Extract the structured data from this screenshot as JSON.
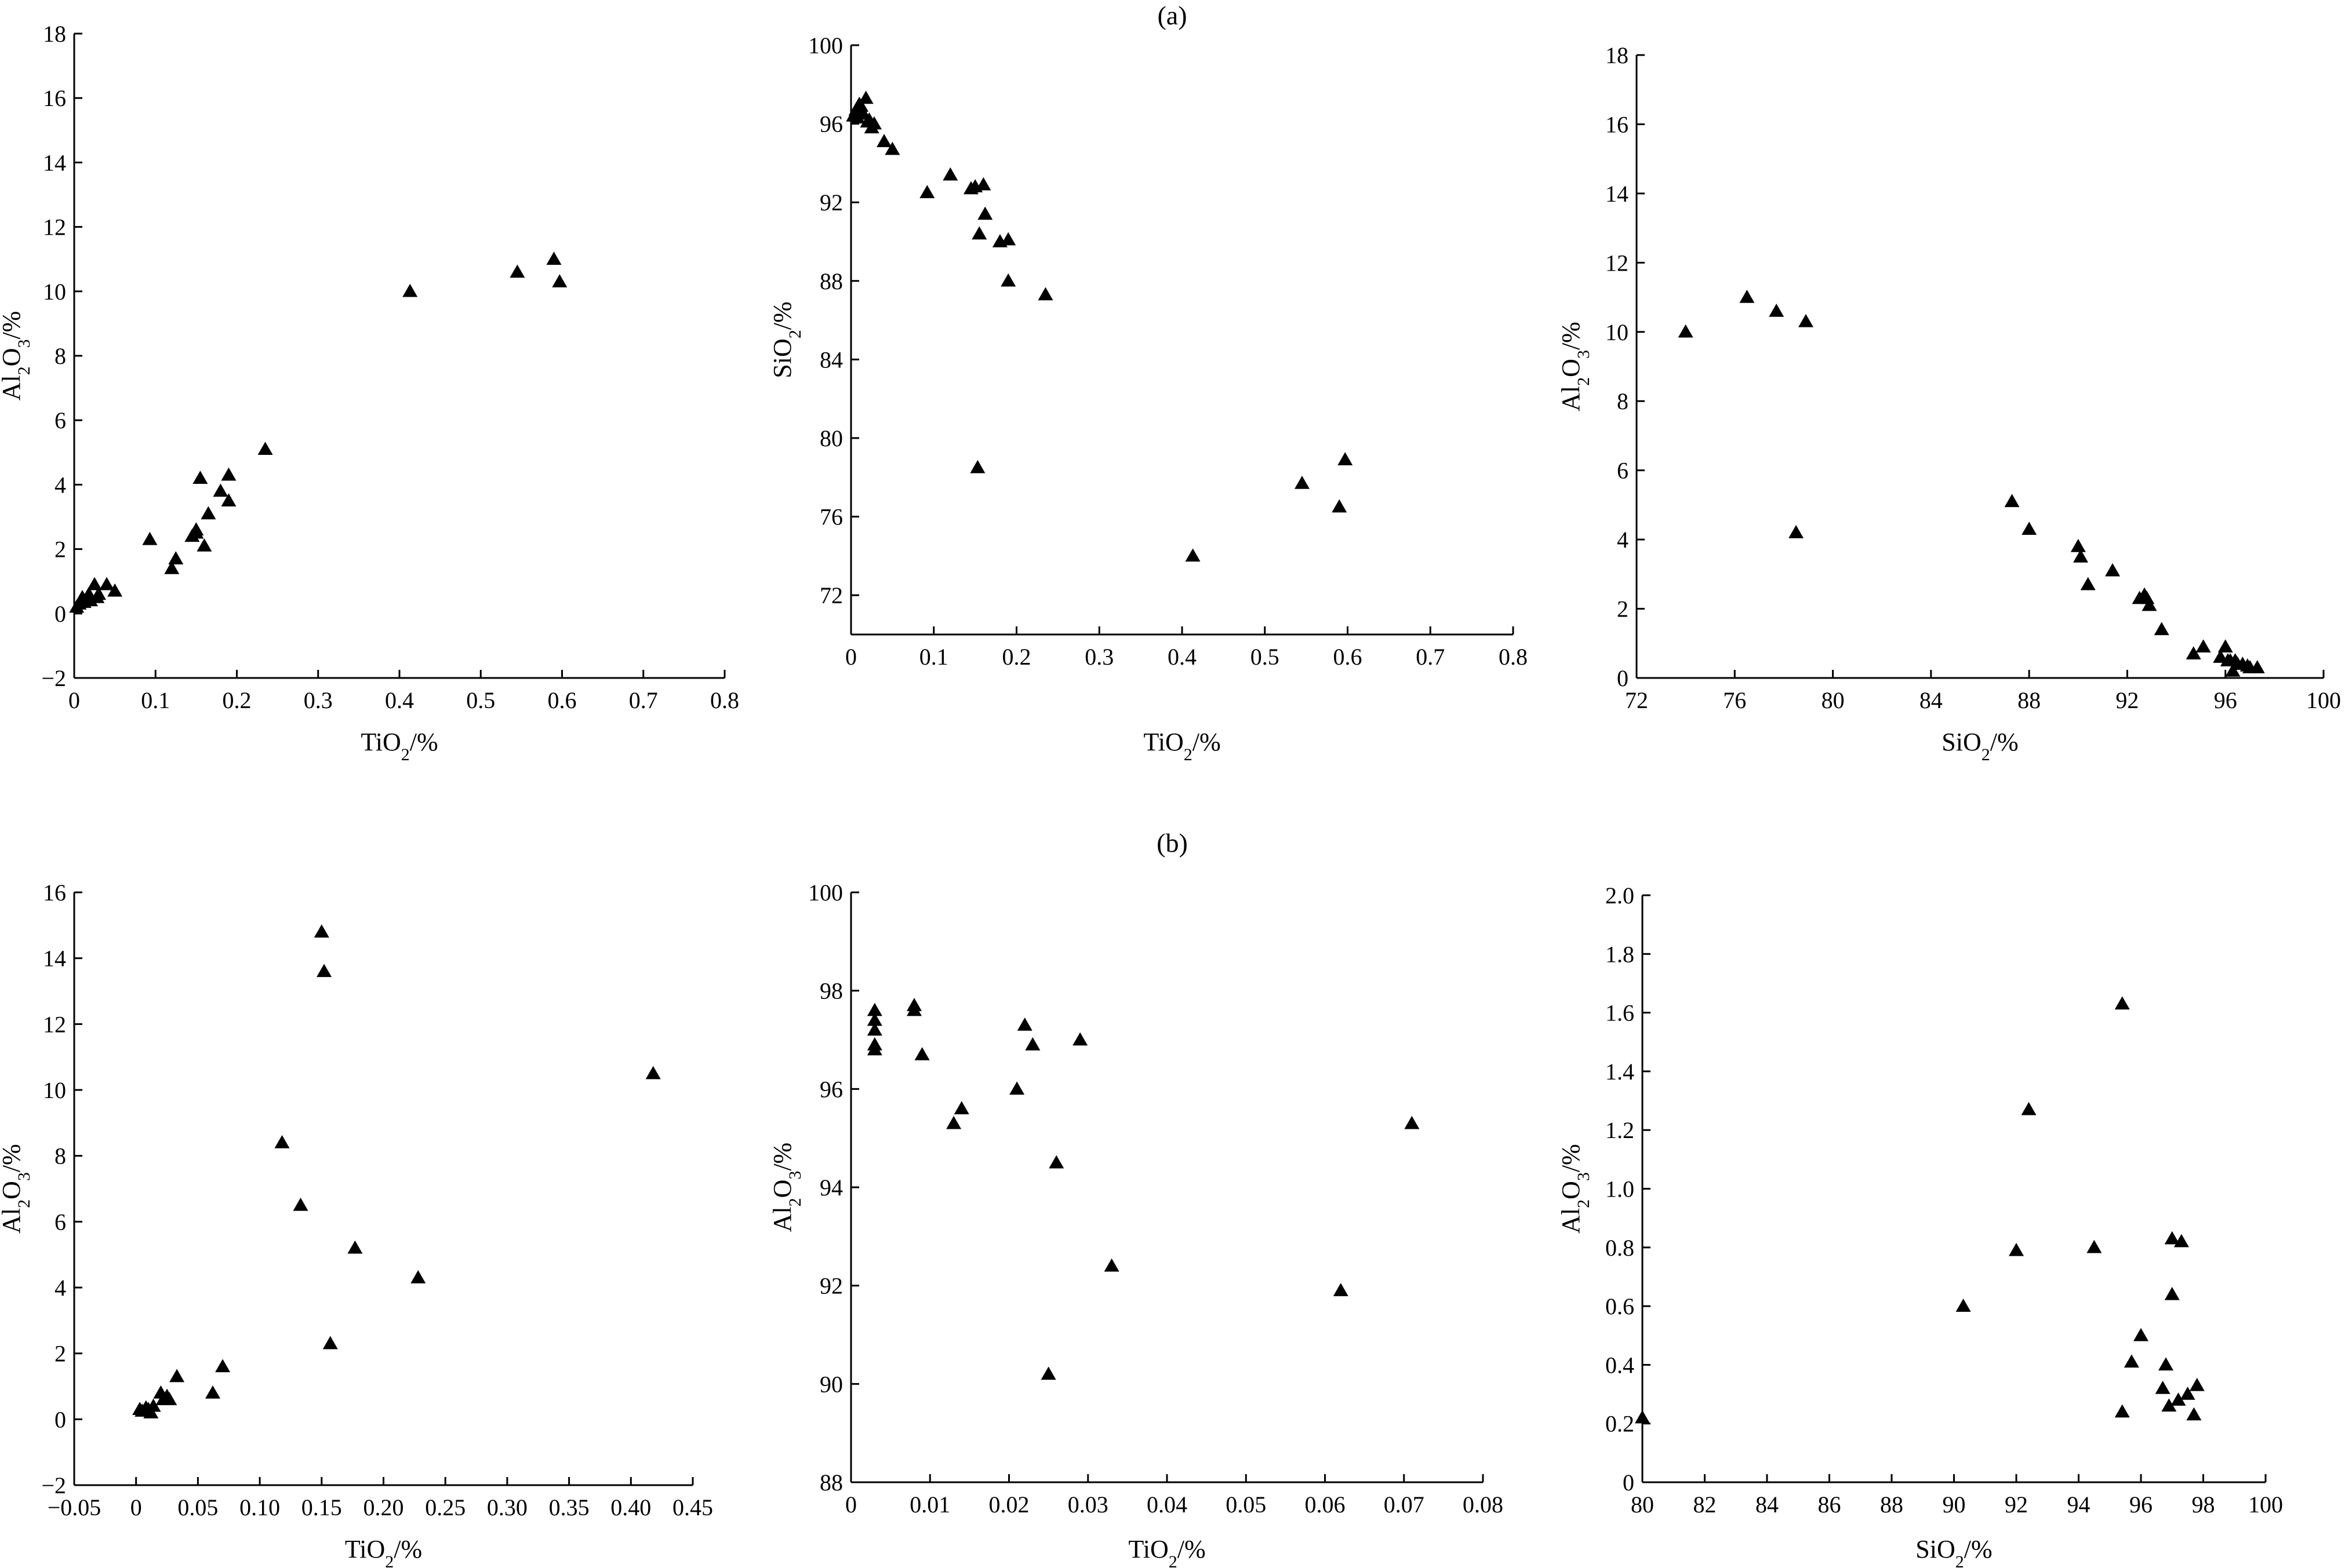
{
  "panels": {
    "a": "(a)",
    "b": "(b)"
  },
  "chart_data": [
    {
      "type": "scatter",
      "panel": "(a)",
      "xlabel": "TiO₂/%",
      "ylabel": "Al₂O₃/%",
      "xlim": [
        0,
        0.8
      ],
      "ylim": [
        -2,
        18
      ],
      "xticks": [
        "0",
        "0.1",
        "0.2",
        "0.3",
        "0.4",
        "0.5",
        "0.6",
        "0.7",
        "0.8"
      ],
      "yticks": [
        "−2",
        "0",
        "2",
        "4",
        "6",
        "8",
        "10",
        "12",
        "14",
        "16",
        "18"
      ],
      "xtick_values": [
        0,
        0.1,
        0.2,
        0.3,
        0.4,
        0.5,
        0.6,
        0.7,
        0.8
      ],
      "ytick_values": [
        -2,
        0,
        2,
        4,
        6,
        8,
        10,
        12,
        14,
        16,
        18
      ],
      "x": [
        0.003,
        0.006,
        0.01,
        0.012,
        0.015,
        0.018,
        0.02,
        0.025,
        0.028,
        0.03,
        0.04,
        0.05,
        0.093,
        0.12,
        0.125,
        0.145,
        0.15,
        0.155,
        0.16,
        0.165,
        0.18,
        0.19,
        0.19,
        0.15,
        0.235,
        0.413,
        0.545,
        0.59,
        0.597
      ],
      "y": [
        0.2,
        0.3,
        0.5,
        0.35,
        0.45,
        0.6,
        0.4,
        0.9,
        0.5,
        0.6,
        0.9,
        0.7,
        2.3,
        1.4,
        1.7,
        2.4,
        2.6,
        4.2,
        2.1,
        3.1,
        3.8,
        4.3,
        3.5,
        2.5,
        5.1,
        10.0,
        10.6,
        11.0,
        10.3
      ]
    },
    {
      "type": "scatter",
      "panel": "(a)",
      "xlabel": "TiO₂/%",
      "ylabel": "SiO₂/%",
      "xlim": [
        0,
        0.8
      ],
      "ylim": [
        70,
        100
      ],
      "xticks": [
        "0",
        "0.1",
        "0.2",
        "0.3",
        "0.4",
        "0.5",
        "0.6",
        "0.7",
        "0.8"
      ],
      "yticks": [
        "72",
        "76",
        "80",
        "84",
        "88",
        "92",
        "96",
        "100"
      ],
      "xtick_values": [
        0,
        0.1,
        0.2,
        0.3,
        0.4,
        0.5,
        0.6,
        0.7,
        0.8
      ],
      "ytick_values": [
        72,
        76,
        80,
        84,
        88,
        92,
        96,
        100
      ],
      "x": [
        0.003,
        0.006,
        0.008,
        0.01,
        0.012,
        0.015,
        0.018,
        0.02,
        0.022,
        0.025,
        0.028,
        0.04,
        0.05,
        0.092,
        0.12,
        0.145,
        0.15,
        0.155,
        0.16,
        0.162,
        0.18,
        0.19,
        0.19,
        0.235,
        0.153,
        0.413,
        0.545,
        0.59,
        0.597
      ],
      "y": [
        96.4,
        96.7,
        96.3,
        97.0,
        96.9,
        96.5,
        97.3,
        96.1,
        96.2,
        95.8,
        96.0,
        95.1,
        94.7,
        92.5,
        93.4,
        92.7,
        92.8,
        90.4,
        92.9,
        91.4,
        90.0,
        90.1,
        88.0,
        87.3,
        78.5,
        74.0,
        77.7,
        76.5,
        78.9
      ]
    },
    {
      "type": "scatter",
      "panel": "(a)",
      "xlabel": "SiO₂/%",
      "ylabel": "Al₂O₃/%",
      "xlim": [
        72,
        100
      ],
      "ylim": [
        0,
        18
      ],
      "xticks": [
        "72",
        "76",
        "80",
        "84",
        "88",
        "92",
        "96",
        "100"
      ],
      "yticks": [
        "0",
        "2",
        "4",
        "6",
        "8",
        "10",
        "12",
        "14",
        "16",
        "18"
      ],
      "xtick_values": [
        72,
        76,
        80,
        84,
        88,
        92,
        96,
        100
      ],
      "ytick_values": [
        0,
        2,
        4,
        6,
        8,
        10,
        12,
        14,
        16,
        18
      ],
      "x": [
        74.0,
        76.5,
        77.7,
        78.9,
        78.5,
        87.3,
        88.0,
        90.0,
        90.1,
        90.4,
        91.4,
        92.5,
        92.7,
        92.8,
        92.9,
        93.4,
        94.7,
        95.1,
        95.8,
        96.0,
        96.1,
        96.2,
        96.3,
        96.4,
        96.5,
        96.7,
        96.9,
        97.0,
        97.3
      ],
      "y": [
        10.0,
        11.0,
        10.6,
        10.3,
        4.2,
        5.1,
        4.3,
        3.8,
        3.5,
        2.7,
        3.1,
        2.3,
        2.4,
        2.3,
        2.1,
        1.4,
        0.7,
        0.9,
        0.6,
        0.9,
        0.5,
        0.5,
        0.2,
        0.5,
        0.4,
        0.4,
        0.35,
        0.3,
        0.3
      ]
    },
    {
      "type": "scatter",
      "panel": "(b)",
      "xlabel": "TiO₂/%",
      "ylabel": "Al₂O₃/%",
      "xlim": [
        -0.05,
        0.45
      ],
      "ylim": [
        -2,
        16
      ],
      "xticks": [
        "−0.05",
        "0",
        "0.05",
        "0.10",
        "0.15",
        "0.20",
        "0.25",
        "0.30",
        "0.35",
        "0.40",
        "0.45"
      ],
      "yticks": [
        "−2",
        "0",
        "2",
        "4",
        "6",
        "8",
        "10",
        "12",
        "14",
        "16"
      ],
      "xtick_values": [
        -0.05,
        0,
        0.05,
        0.1,
        0.15,
        0.2,
        0.25,
        0.3,
        0.35,
        0.4,
        0.45
      ],
      "ytick_values": [
        -2,
        0,
        2,
        4,
        6,
        8,
        10,
        12,
        14,
        16
      ],
      "x": [
        0.003,
        0.005,
        0.008,
        0.01,
        0.012,
        0.014,
        0.02,
        0.022,
        0.025,
        0.027,
        0.033,
        0.062,
        0.07,
        0.118,
        0.133,
        0.15,
        0.152,
        0.157,
        0.177,
        0.228,
        0.418
      ],
      "y": [
        0.3,
        0.25,
        0.35,
        0.3,
        0.2,
        0.4,
        0.8,
        0.6,
        0.7,
        0.6,
        1.3,
        0.8,
        1.6,
        8.4,
        6.5,
        14.8,
        13.6,
        2.3,
        5.2,
        4.3,
        10.5
      ]
    },
    {
      "type": "scatter",
      "panel": "(b)",
      "xlabel": "TiO₂/%",
      "ylabel": "Al₂O₃/%",
      "xlim": [
        0,
        0.08
      ],
      "ylim": [
        88,
        100
      ],
      "xticks": [
        "0",
        "0.01",
        "0.02",
        "0.03",
        "0.04",
        "0.05",
        "0.06",
        "0.07",
        "0.08"
      ],
      "yticks": [
        "88",
        "90",
        "92",
        "94",
        "96",
        "98",
        "100"
      ],
      "xtick_values": [
        0,
        0.01,
        0.02,
        0.03,
        0.04,
        0.05,
        0.06,
        0.07,
        0.08
      ],
      "ytick_values": [
        88,
        90,
        92,
        94,
        96,
        98,
        100
      ],
      "x": [
        0.003,
        0.003,
        0.003,
        0.003,
        0.003,
        0.008,
        0.008,
        0.009,
        0.013,
        0.014,
        0.021,
        0.022,
        0.023,
        0.025,
        0.026,
        0.029,
        0.033,
        0.062,
        0.071
      ],
      "y": [
        97.6,
        97.4,
        97.2,
        96.9,
        96.8,
        97.7,
        97.6,
        96.7,
        95.3,
        95.6,
        96.0,
        97.3,
        96.9,
        90.2,
        94.5,
        97.0,
        92.4,
        91.9,
        95.3
      ]
    },
    {
      "type": "scatter",
      "panel": "(b)",
      "xlabel": "SiO₂/%",
      "ylabel": "Al₂O₃/%",
      "xlim": [
        80,
        100
      ],
      "ylim": [
        0,
        2.0
      ],
      "xticks": [
        "80",
        "82",
        "84",
        "86",
        "88",
        "90",
        "92",
        "94",
        "96",
        "98",
        "100"
      ],
      "yticks": [
        "0",
        "0.2",
        "0.4",
        "0.6",
        "0.8",
        "1.0",
        "1.2",
        "1.4",
        "1.6",
        "1.8",
        "2.0"
      ],
      "xtick_values": [
        80,
        82,
        84,
        86,
        88,
        90,
        92,
        94,
        96,
        98,
        100
      ],
      "ytick_values": [
        0,
        0.2,
        0.4,
        0.6,
        0.8,
        1.0,
        1.2,
        1.4,
        1.6,
        1.8,
        2.0
      ],
      "x": [
        80.0,
        90.3,
        92.0,
        92.4,
        94.5,
        95.4,
        95.4,
        95.7,
        96.0,
        96.7,
        96.8,
        96.9,
        97.0,
        97.0,
        97.2,
        97.3,
        97.5,
        97.7,
        97.8
      ],
      "y": [
        0.22,
        0.6,
        0.79,
        1.27,
        0.8,
        1.63,
        0.24,
        0.41,
        0.5,
        0.32,
        0.4,
        0.26,
        0.83,
        0.64,
        0.28,
        0.82,
        0.3,
        0.23,
        0.33
      ]
    }
  ]
}
